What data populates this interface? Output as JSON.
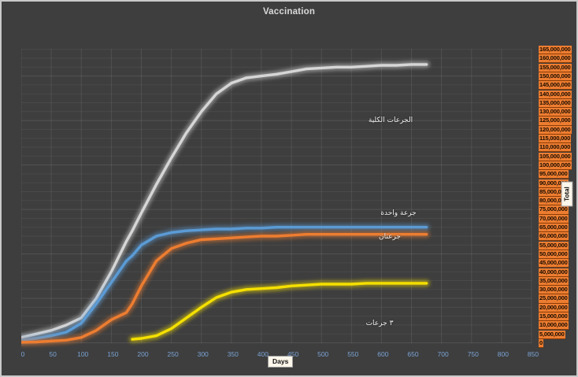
{
  "title": "Vaccination",
  "colors": {
    "background": "#3e3e3e",
    "frame": "#c9c9c9",
    "title": "#d9d9d9",
    "x_tick": "#7aa2d4",
    "y_tick_bg": "#ed7d31",
    "y_tick_text": "#1a0d00",
    "annotation": "#f2f2f2"
  },
  "axes": {
    "x": {
      "label": "Days",
      "min": 0,
      "max": 850,
      "tick_step": 50,
      "ticks": [
        0,
        50,
        100,
        150,
        200,
        250,
        300,
        350,
        400,
        450,
        500,
        550,
        600,
        650,
        700,
        750,
        800,
        850
      ]
    },
    "y": {
      "label": "Total",
      "min": 0,
      "max": 165000000,
      "tick_step": 5000000,
      "ticks": [
        "165,000,000",
        "160,000,000",
        "155,000,000",
        "150,000,000",
        "145,000,000",
        "140,000,000",
        "135,000,000",
        "130,000,000",
        "125,000,000",
        "120,000,000",
        "115,000,000",
        "110,000,000",
        "105,000,000",
        "100,000,000",
        "95,000,000",
        "90,000,000",
        "85,000,000",
        "80,000,000",
        "75,000,000",
        "70,000,000",
        "65,000,000",
        "60,000,000",
        "55,000,000",
        "50,000,000",
        "45,000,000",
        "40,000,000",
        "35,000,000",
        "30,000,000",
        "25,000,000",
        "20,000,000",
        "15,000,000",
        "10,000,000",
        "5,000,000",
        "0"
      ]
    }
  },
  "annotations": {
    "total_doses": "الجرعات الكلية",
    "one_dose": "جرعة واحدة",
    "two_doses": "جرعتان",
    "three_doses": "٣ جرعات"
  },
  "chart_data": {
    "type": "line",
    "title": "Vaccination",
    "xlabel": "Days",
    "ylabel": "Total",
    "xlim": [
      0,
      850
    ],
    "ylim": [
      0,
      165000000
    ],
    "grid": true,
    "legend": "inline-data-labels",
    "x": [
      0,
      25,
      50,
      75,
      100,
      125,
      150,
      175,
      185,
      200,
      225,
      250,
      275,
      300,
      325,
      350,
      375,
      400,
      425,
      450,
      475,
      500,
      525,
      550,
      575,
      600,
      625,
      650,
      675
    ],
    "series": [
      {
        "id": "total-doses",
        "name": "الجرعات الكلية",
        "color": "#d6d6d6",
        "values": [
          3000000,
          5000000,
          7000000,
          10000000,
          14000000,
          25000000,
          40000000,
          57000000,
          63000000,
          73000000,
          89000000,
          104000000,
          118000000,
          130000000,
          140000000,
          146000000,
          149000000,
          150000000,
          151000000,
          152500000,
          154000000,
          154500000,
          155000000,
          155000000,
          155500000,
          156000000,
          156000000,
          156500000,
          156500000
        ]
      },
      {
        "id": "one-dose",
        "name": "جرعة واحدة",
        "color": "#5b9bd5",
        "values": [
          1500000,
          2500000,
          4000000,
          6000000,
          11000000,
          22000000,
          34000000,
          46000000,
          49000000,
          55000000,
          60000000,
          62000000,
          63000000,
          63500000,
          64000000,
          64000000,
          64500000,
          64500000,
          65000000,
          65000000,
          65000000,
          65000000,
          65000000,
          65000000,
          65000000,
          65000000,
          65000000,
          65000000,
          65000000
        ]
      },
      {
        "id": "two-doses",
        "name": "جرعتان",
        "color": "#ed7d31",
        "values": [
          300000,
          500000,
          1000000,
          1500000,
          3000000,
          7000000,
          13000000,
          17000000,
          22000000,
          32000000,
          46000000,
          53000000,
          56000000,
          58000000,
          58500000,
          59000000,
          59500000,
          60000000,
          60000000,
          60500000,
          61000000,
          61000000,
          61000000,
          61000000,
          61000000,
          61000000,
          61000000,
          61000000,
          61000000
        ]
      },
      {
        "id": "three-doses",
        "name": "٣ جرعات",
        "color": "#f5e000",
        "values": [
          null,
          null,
          null,
          null,
          null,
          null,
          null,
          null,
          2000000,
          2500000,
          4000000,
          8000000,
          14000000,
          20000000,
          25500000,
          28500000,
          30000000,
          30500000,
          31000000,
          32000000,
          32500000,
          33000000,
          33000000,
          33000000,
          33500000,
          33500000,
          33500000,
          33500000,
          33500000
        ]
      }
    ]
  }
}
